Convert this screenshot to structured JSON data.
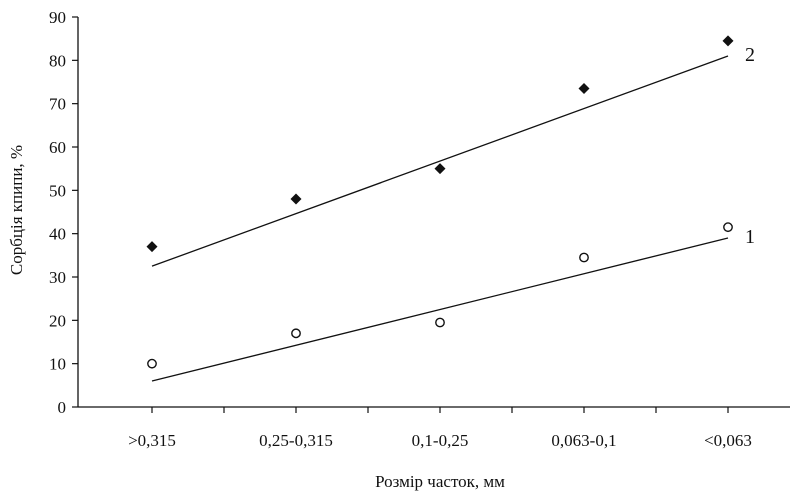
{
  "chart_data": {
    "type": "scatter",
    "title": "",
    "xlabel": "Розмір часток, мм",
    "ylabel": "Сорбція кпипи, %",
    "categories": [
      ">0,315",
      "0,25-0,315",
      "0,1-0,25",
      "0,063-0,1",
      "<0,063"
    ],
    "ylim": [
      0,
      90
    ],
    "yticks": [
      0,
      10,
      20,
      30,
      40,
      50,
      60,
      70,
      80,
      90
    ],
    "grid": false,
    "legend": "none",
    "series": [
      {
        "label": "1",
        "marker": "hollow-circle",
        "values": [
          10,
          17,
          19.5,
          34.5,
          41.5
        ],
        "trendline": [
          6,
          39
        ]
      },
      {
        "label": "2",
        "marker": "filled-diamond",
        "values": [
          37,
          48,
          55,
          73.5,
          84.5
        ],
        "trendline": [
          32.5,
          81
        ]
      }
    ],
    "colors": {
      "ink": "#111111",
      "background": "#ffffff"
    }
  }
}
